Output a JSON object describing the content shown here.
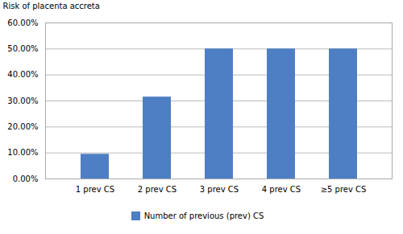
{
  "chart_data": {
    "type": "bar",
    "ylabel": "Risk of placenta accreta",
    "categories": [
      "1 prev CS",
      "2 prev CS",
      "3 prev CS",
      "4 prev CS",
      "≥5 prev CS"
    ],
    "series": [
      {
        "name": "Number of previous (prev) CS",
        "color": "#4E7FC4",
        "values": [
          0.095,
          0.315,
          0.5,
          0.5,
          0.5
        ]
      }
    ],
    "ylim": [
      0,
      0.6
    ],
    "yticks": [
      {
        "value": 0.0,
        "label": "0.00%"
      },
      {
        "value": 0.1,
        "label": "10.00%"
      },
      {
        "value": 0.2,
        "label": "20.00%"
      },
      {
        "value": 0.3,
        "label": "30.00%"
      },
      {
        "value": 0.4,
        "label": "40.00%"
      },
      {
        "value": 0.5,
        "label": "50.00%"
      },
      {
        "value": 0.6,
        "label": "60.00%"
      }
    ],
    "grid": true,
    "legend": "bottom"
  }
}
